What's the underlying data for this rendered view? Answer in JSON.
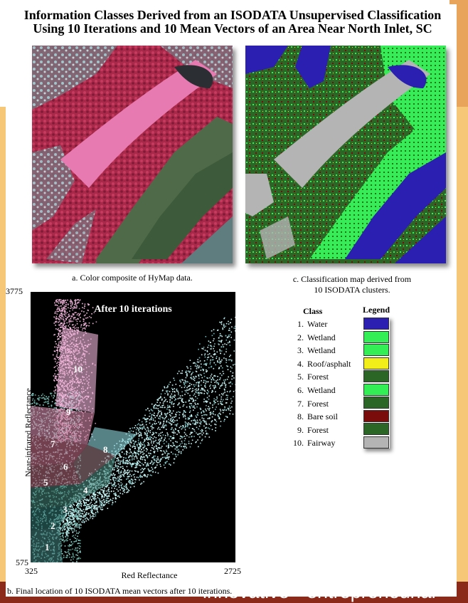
{
  "title_line1": "Information Classes Derived from an ISODATA Unsupervised Classification",
  "title_line2": "Using 10 Iterations and 10 Mean Vectors of an Area Near North Inlet, SC",
  "caption_a": "a. Color composite of HyMap data.",
  "caption_c_line1": "c. Classification map derived from",
  "caption_c_line2": "10 ISODATA clusters.",
  "caption_b": "b. Final location of 10 ISODATA mean vectors after 10 iterations.",
  "footer": "innovative • entrepreneurial •",
  "chart_data": {
    "type": "scatter",
    "title": "After 10 iterations",
    "xlabel": "Red Reflectance",
    "ylabel": "Near-infrared Reflectance",
    "xlim": [
      325,
      2725
    ],
    "ylim": [
      575,
      3775
    ],
    "x_ticks": [
      "325",
      "2725"
    ],
    "y_ticks": [
      "575",
      "3775"
    ],
    "cluster_labels": [
      "1",
      "2",
      "3",
      "4",
      "5",
      "6",
      "7",
      "8",
      "9",
      "10"
    ]
  },
  "legend": {
    "class_header": "Class",
    "legend_header": "Legend",
    "items": [
      {
        "num": "1.",
        "name": "Water",
        "color": "#2a1fb0"
      },
      {
        "num": "2.",
        "name": "Wetland",
        "color": "#33ee55"
      },
      {
        "num": "3.",
        "name": "Wetland",
        "color": "#33ee55"
      },
      {
        "num": "4.",
        "name": "Roof/asphalt",
        "color": "#f2ee1a"
      },
      {
        "num": "5.",
        "name": "Forest",
        "color": "#2c6627"
      },
      {
        "num": "6.",
        "name": "Wetland",
        "color": "#33ee55"
      },
      {
        "num": "7.",
        "name": "Forest",
        "color": "#2c6627"
      },
      {
        "num": "8.",
        "name": "Bare soil",
        "color": "#7a0c0c"
      },
      {
        "num": "9.",
        "name": "Forest",
        "color": "#2c6627"
      },
      {
        "num": "10.",
        "name": "Fairway",
        "color": "#b4b4b4"
      }
    ]
  }
}
